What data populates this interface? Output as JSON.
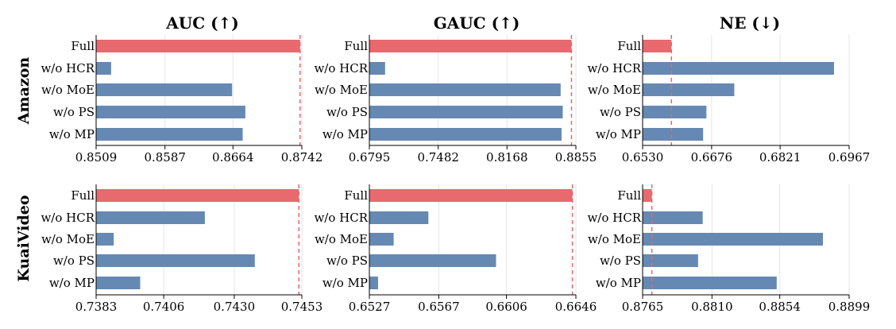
{
  "colors": {
    "full": "#e8696e",
    "ablation": "#6589b2",
    "reference_line": "#e8666c"
  },
  "column_titles": [
    "AUC (↑)",
    "GAUC (↑)",
    "NE (↓)"
  ],
  "row_labels": [
    "Amazon",
    "KuaiVideo"
  ],
  "chart_data": [
    {
      "type": "bar",
      "orientation": "horizontal",
      "title": "AUC (↑)",
      "row": "Amazon",
      "categories": [
        "Full",
        "w/o HCR",
        "w/o MoE",
        "w/o PS",
        "w/o MP"
      ],
      "values": [
        0.874,
        0.8526,
        0.8663,
        0.8678,
        0.8675
      ],
      "xlim": [
        0.8509,
        0.8742
      ],
      "xticks": [
        "0.8509",
        "0.8587",
        "0.8664",
        "0.8742"
      ],
      "reference_value": 0.874
    },
    {
      "type": "bar",
      "orientation": "horizontal",
      "title": "GAUC (↑)",
      "row": "Amazon",
      "categories": [
        "Full",
        "w/o HCR",
        "w/o MoE",
        "w/o PS",
        "w/o MP"
      ],
      "values": [
        0.8811,
        0.6952,
        0.8703,
        0.8724,
        0.8712
      ],
      "xlim": [
        0.6795,
        0.8855
      ],
      "xticks": [
        "0.6795",
        "0.7482",
        "0.8168",
        "0.8855"
      ],
      "reference_value": 0.8811
    },
    {
      "type": "bar",
      "orientation": "horizontal",
      "title": "NE (↓)",
      "row": "Amazon",
      "categories": [
        "Full",
        "w/o HCR",
        "w/o MoE",
        "w/o PS",
        "w/o MP"
      ],
      "values": [
        0.6591,
        0.6935,
        0.6724,
        0.6665,
        0.6658
      ],
      "xlim": [
        0.653,
        0.6967
      ],
      "xticks": [
        "0.6530",
        "0.6676",
        "0.6821",
        "0.6967"
      ],
      "reference_value": 0.6591
    },
    {
      "type": "bar",
      "orientation": "horizontal",
      "title": "AUC (↑)",
      "row": "KuaiVideo",
      "categories": [
        "Full",
        "w/o HCR",
        "w/o MoE",
        "w/o PS",
        "w/o MP"
      ],
      "values": [
        0.7452,
        0.742,
        0.7389,
        0.7437,
        0.7398
      ],
      "xlim": [
        0.7383,
        0.7453
      ],
      "xticks": [
        "0.7383",
        "0.7406",
        "0.7430",
        "0.7453"
      ],
      "reference_value": 0.7452
    },
    {
      "type": "bar",
      "orientation": "horizontal",
      "title": "GAUC (↑)",
      "row": "KuaiVideo",
      "categories": [
        "Full",
        "w/o HCR",
        "w/o MoE",
        "w/o PS",
        "w/o MP"
      ],
      "values": [
        0.6644,
        0.6561,
        0.6541,
        0.66,
        0.6532
      ],
      "xlim": [
        0.6527,
        0.6646
      ],
      "xticks": [
        "0.6527",
        "0.6567",
        "0.6606",
        "0.6646"
      ],
      "reference_value": 0.6644
    },
    {
      "type": "bar",
      "orientation": "horizontal",
      "title": "NE (↓)",
      "row": "KuaiVideo",
      "categories": [
        "Full",
        "w/o HCR",
        "w/o MoE",
        "w/o PS",
        "w/o MP"
      ],
      "values": [
        0.8771,
        0.8804,
        0.8882,
        0.8801,
        0.8852
      ],
      "xlim": [
        0.8765,
        0.8899
      ],
      "xticks": [
        "0.8765",
        "0.8810",
        "0.8854",
        "0.8899"
      ],
      "reference_value": 0.8771
    }
  ]
}
